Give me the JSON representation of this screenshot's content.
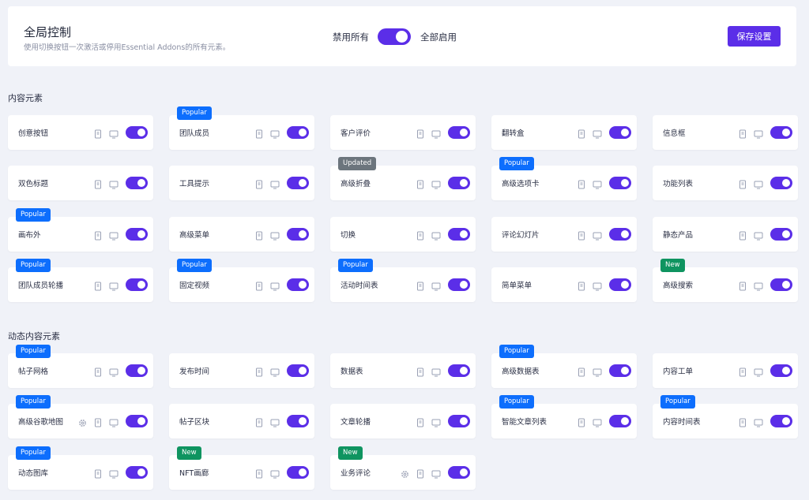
{
  "colors": {
    "accent": "#5b2ee8",
    "popular": "#0d6efd",
    "updated": "#6c757d",
    "new": "#0f9460"
  },
  "header": {
    "title": "全局控制",
    "subtitle": "使用切换按钮一次激活或停用Essential Addons的所有元素。",
    "disable_all": "禁用所有",
    "enable_all": "全部启用",
    "global_toggle_on": true,
    "save_label": "保存设置"
  },
  "sections": [
    {
      "title": "内容元素",
      "items": [
        {
          "name": "创意按钮"
        },
        {
          "name": "团队成员",
          "badge": "Popular"
        },
        {
          "name": "客户评价"
        },
        {
          "name": "翻转盒"
        },
        {
          "name": "信息框"
        },
        {
          "name": "双色标题"
        },
        {
          "name": "工具提示"
        },
        {
          "name": "高级折叠",
          "badge": "Updated"
        },
        {
          "name": "高级选项卡",
          "badge": "Popular"
        },
        {
          "name": "功能列表"
        },
        {
          "name": "画布外",
          "badge": "Popular"
        },
        {
          "name": "高级菜单"
        },
        {
          "name": "切换"
        },
        {
          "name": "评论幻灯片"
        },
        {
          "name": "静态产品"
        },
        {
          "name": "团队成员轮播",
          "badge": "Popular"
        },
        {
          "name": "固定视频",
          "badge": "Popular"
        },
        {
          "name": "活动时间表",
          "badge": "Popular"
        },
        {
          "name": "简单菜单"
        },
        {
          "name": "高级搜索",
          "badge": "New"
        }
      ]
    },
    {
      "title": "动态内容元素",
      "items": [
        {
          "name": "帖子网格",
          "badge": "Popular"
        },
        {
          "name": "发布时间"
        },
        {
          "name": "数据表"
        },
        {
          "name": "高级数据表",
          "badge": "Popular"
        },
        {
          "name": "内容工单"
        },
        {
          "name": "高级谷歌地图",
          "badge": "Popular",
          "settings": true
        },
        {
          "name": "帖子区块"
        },
        {
          "name": "文章轮播"
        },
        {
          "name": "智能文章列表",
          "badge": "Popular"
        },
        {
          "name": "内容时间表",
          "badge": "Popular"
        },
        {
          "name": "动态图库",
          "badge": "Popular"
        },
        {
          "name": "NFT画廊",
          "badge": "New"
        },
        {
          "name": "业务评论",
          "badge": "New",
          "settings": true
        }
      ]
    }
  ]
}
